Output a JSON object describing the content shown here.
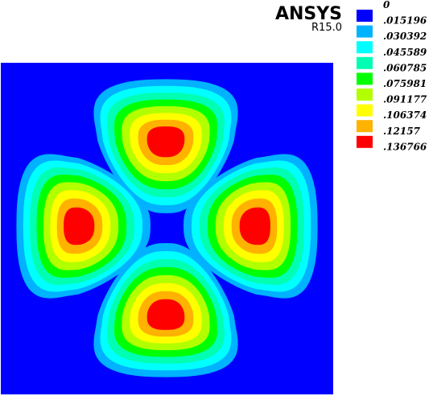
{
  "chart_data": {
    "type": "contour",
    "title": "ANSYS",
    "subtitle": "R15.0",
    "levels": [
      0,
      {
        "value": 0.015196,
        "label": ".015196"
      },
      {
        "value": 0.030392,
        "label": ".030392"
      },
      {
        "value": 0.045589,
        "label": ".045589"
      },
      {
        "value": 0.060785,
        "label": ".060785"
      },
      {
        "value": 0.075981,
        "label": ".075981"
      },
      {
        "value": 0.091177,
        "label": ".091177"
      },
      {
        "value": 0.106374,
        "label": ".106374"
      },
      {
        "value": 0.12157,
        "label": ".12157"
      },
      {
        "value": 0.136766,
        "label": ".136766"
      }
    ],
    "colors": [
      "#0000ff",
      "#00b2ff",
      "#00ffff",
      "#00ffb2",
      "#00ff00",
      "#b2ff00",
      "#ffff00",
      "#ffb200",
      "#ff0000"
    ]
  }
}
